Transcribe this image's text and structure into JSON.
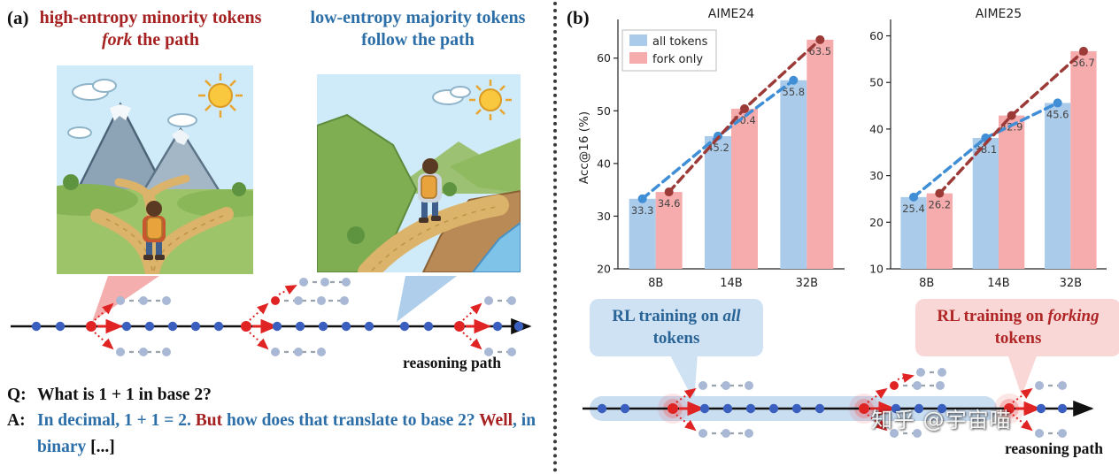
{
  "panel_a": {
    "label": "(a)",
    "caption_red": {
      "p1": "high-entropy minority tokens ",
      "italic": "fork",
      "p2": " the path"
    },
    "caption_blue": "low-entropy majority tokens follow the path",
    "reasoning_path_label": "reasoning path",
    "qa": {
      "q_label": "Q:",
      "q_text": "What is 1 + 1 in base 2?",
      "a_label": "A:",
      "a_parts": {
        "p1": "In decimal, 1 + 1 = 2. ",
        "but": "But",
        "p2": " how does that translate to base 2? ",
        "well": "Well",
        "p3": ", in binary ",
        "ellipsis": "[...]"
      }
    }
  },
  "panel_b": {
    "label": "(b)",
    "callout_blue": {
      "p1": "RL training on ",
      "italic": "all",
      "p2": " tokens"
    },
    "callout_red": {
      "p1": "RL training on ",
      "italic": "forking",
      "p2": " tokens"
    },
    "reasoning_path_label": "reasoning path",
    "watermark": "知乎 @宇宙喵"
  },
  "chart_data": [
    {
      "type": "bar",
      "title": "AIME24",
      "ylabel": "Acc@16 (%)",
      "xlabel": "",
      "categories": [
        "8B",
        "14B",
        "32B"
      ],
      "series": [
        {
          "name": "all tokens",
          "values": [
            33.3,
            45.2,
            55.8
          ]
        },
        {
          "name": "fork only",
          "values": [
            34.6,
            50.4,
            63.5
          ]
        }
      ],
      "ylim": [
        20,
        66
      ],
      "yticks": [
        20,
        30,
        40,
        50,
        60
      ],
      "legend": true,
      "legend_position": "upper left",
      "grid": false,
      "value_labels": true,
      "trend_lines": "dashed with markers over bar tops"
    },
    {
      "type": "bar",
      "title": "AIME25",
      "ylabel": "",
      "xlabel": "",
      "categories": [
        "8B",
        "14B",
        "32B"
      ],
      "series": [
        {
          "name": "all tokens",
          "values": [
            25.4,
            38.1,
            45.6
          ]
        },
        {
          "name": "fork only",
          "values": [
            26.2,
            42.9,
            56.7
          ]
        }
      ],
      "ylim": [
        10,
        62
      ],
      "yticks": [
        10,
        20,
        30,
        40,
        50,
        60
      ],
      "legend": false,
      "grid": false,
      "value_labels": true,
      "trend_lines": "dashed with markers over bar tops"
    }
  ],
  "colors": {
    "caption_red": "#a62121",
    "caption_blue": "#2c6fa8",
    "bar_all": "#abcbea",
    "bar_fork": "#f6abad",
    "line_all": "#3f8ed6",
    "line_fork": "#9c3a38",
    "dot_blue": "#3a5fbe",
    "dot_red": "#e02424",
    "branch_dot": "#a9b8d4",
    "band_blue": "#cadef2",
    "bubble_blue_bg": "#cfe2f4",
    "bubble_blue_text": "#2a6496",
    "bubble_red_bg": "#f8d7d6",
    "bubble_red_text": "#b02626"
  }
}
